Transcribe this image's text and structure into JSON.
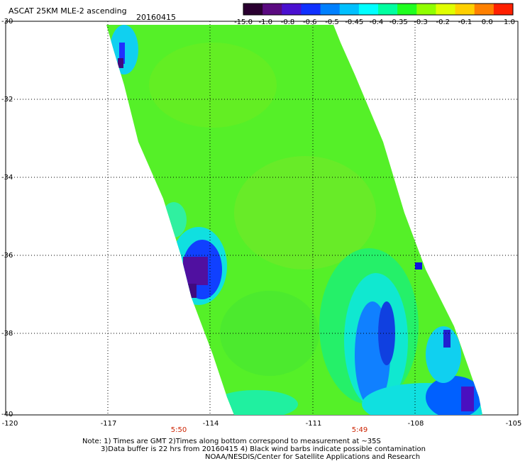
{
  "header": {
    "title": "ASCAT 25KM MLE-2 ascending",
    "date": "20160415"
  },
  "colorbar": {
    "labels": [
      "-15.0",
      "-1.0",
      "-0.8",
      "-0.6",
      "-0.5",
      "-0.45",
      "-0.4",
      "-0.35",
      "-0.3",
      "-0.2",
      "-0.1",
      "0.0",
      "1.0"
    ],
    "colors": [
      "#2a0030",
      "#5a0a80",
      "#4a10d0",
      "#1030ff",
      "#0080ff",
      "#00c0ff",
      "#00ffff",
      "#00ffa0",
      "#20ff20",
      "#90ff00",
      "#e0ff00",
      "#ffd000",
      "#ff8000",
      "#ff2000"
    ]
  },
  "map": {
    "lat_labels": [
      "-30",
      "-32",
      "-34",
      "-36",
      "-38",
      "-40"
    ],
    "lon_labels": [
      "-120",
      "-117",
      "-114",
      "-111",
      "-108",
      "-105"
    ],
    "time_labels": [
      "5:50",
      "5:49"
    ],
    "lat_range": [
      -40,
      -30
    ],
    "lon_range": [
      -120,
      -105
    ]
  },
  "notes": {
    "line1": "Note: 1) Times are GMT 2)Times along bottom correspond to measurement at ~35S",
    "line2": "3)Data buffer is 22 hrs from 20160415 4) Black wind barbs indicate possible contamination",
    "line3": "NOAA/NESDIS/Center for Satellite Applications and Research"
  }
}
